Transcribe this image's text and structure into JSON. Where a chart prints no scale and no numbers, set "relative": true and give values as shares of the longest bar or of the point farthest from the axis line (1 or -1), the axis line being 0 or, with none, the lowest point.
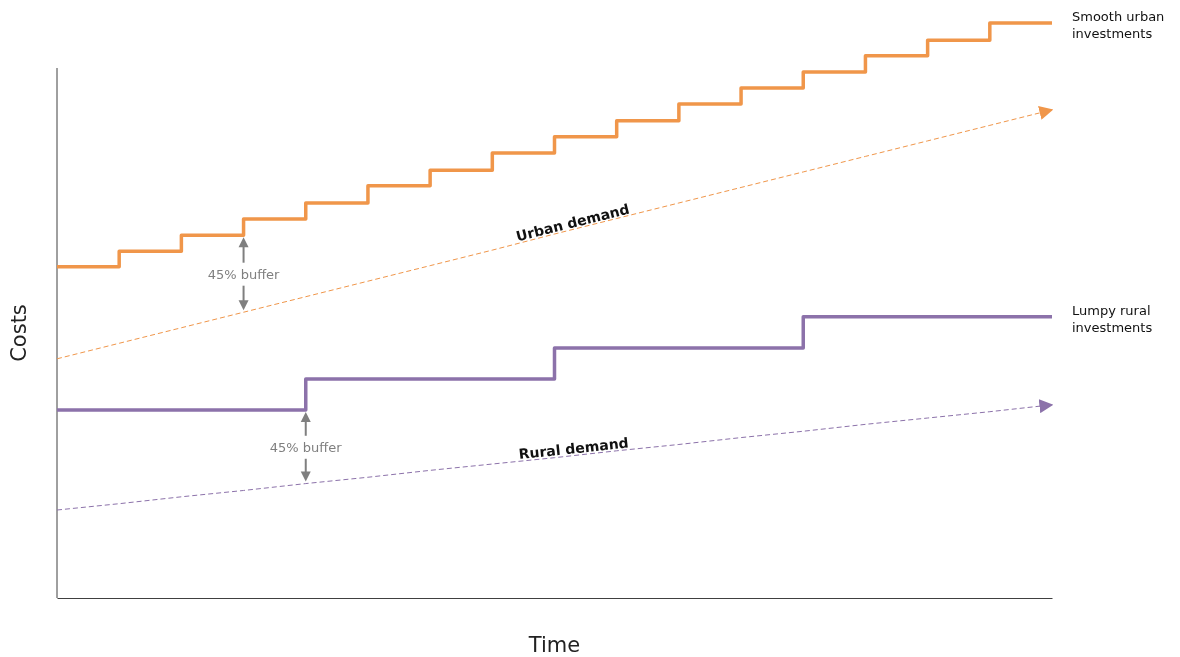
{
  "chart_data": {
    "type": "step",
    "relative": true,
    "xlabel": "Time",
    "ylabel": "Costs",
    "marker": "none",
    "categories": [
      null,
      null,
      null,
      null,
      null,
      null,
      null,
      null,
      null,
      null,
      null,
      null,
      null,
      null,
      null,
      null,
      null
    ],
    "series": [
      {
        "name": "Smooth urban investments",
        "color": "#f0964a",
        "line_style": "solid",
        "values": [
          0.576,
          0.603,
          0.631,
          0.659,
          0.687,
          0.717,
          0.744,
          0.774,
          0.802,
          0.83,
          0.859,
          0.887,
          0.915,
          0.943,
          0.97,
          1,
          1
        ]
      },
      {
        "name": "Lumpy rural investments",
        "color": "#8c72aa",
        "line_style": "solid",
        "values": [
          0.327,
          0.327,
          0.327,
          0.327,
          0.381,
          0.381,
          0.381,
          0.381,
          0.435,
          0.435,
          0.435,
          0.435,
          0.489,
          0.489,
          0.489,
          0.489,
          0.489
        ]
      },
      {
        "name": "Urban demand",
        "type": "line",
        "color": "#f0964a",
        "line_style": "dashed",
        "values": [
          0.416,
          0.443,
          0.47,
          0.497,
          0.524,
          0.551,
          0.578,
          0.605,
          0.633,
          0.66,
          0.687,
          0.714,
          0.741,
          0.768,
          0.795,
          0.822,
          0.849
        ]
      },
      {
        "name": "Rural demand",
        "type": "line",
        "color": "#8c72aa",
        "line_style": "dashed",
        "values": [
          0.153,
          0.164,
          0.176,
          0.187,
          0.199,
          0.21,
          0.222,
          0.233,
          0.244,
          0.256,
          0.267,
          0.279,
          0.29,
          0.302,
          0.313,
          0.324,
          0.336
        ]
      }
    ],
    "annotations": [
      "45% buffer",
      "45% buffer"
    ]
  }
}
